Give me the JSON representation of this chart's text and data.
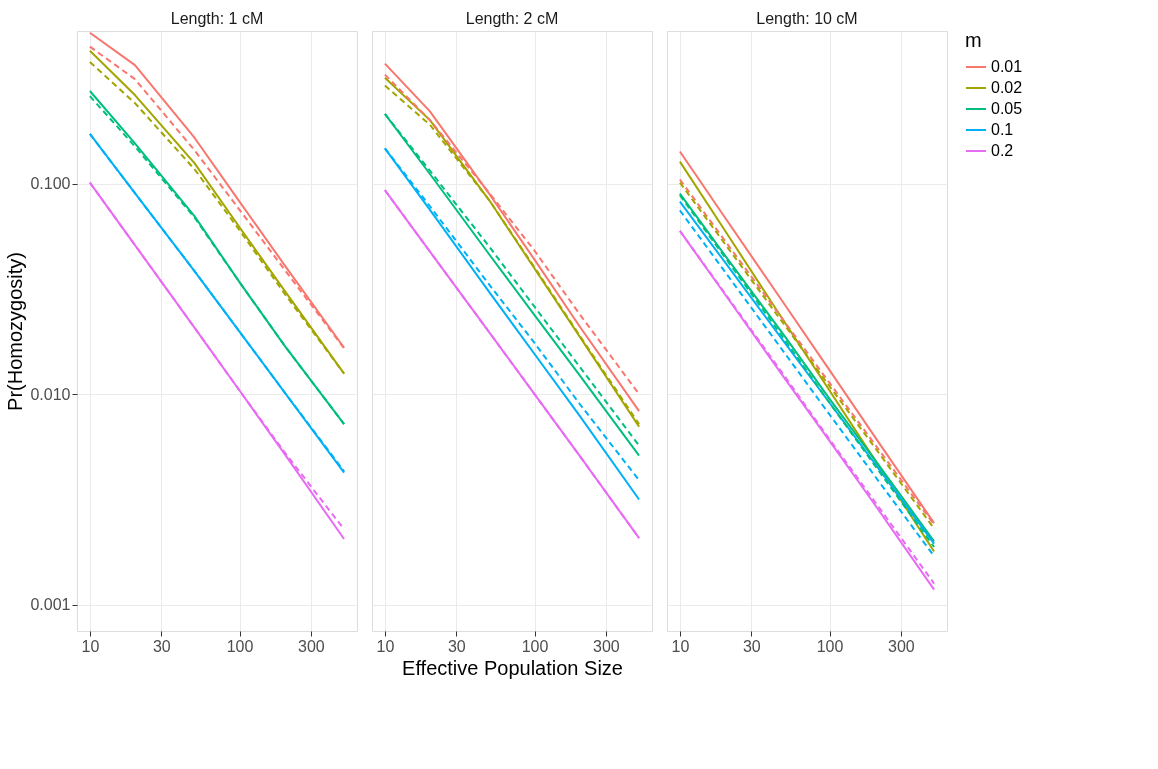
{
  "chart_data": [
    {
      "type": "line",
      "title": "Length: 1 cM",
      "ylabel": "Pr(Homozygosity)",
      "x": [
        10,
        20,
        50,
        100,
        200,
        500
      ],
      "xlim": [
        8.2,
        610
      ],
      "ylim": [
        0.00075,
        0.53
      ],
      "log": "xy",
      "grid": true,
      "legend": false,
      "xticks": [
        10,
        30,
        100,
        300
      ],
      "yticks": [
        {
          "value": 0.001,
          "label": "0.001"
        },
        {
          "value": 0.01,
          "label": "0.010"
        },
        {
          "value": 0.1,
          "label": "0.100"
        }
      ],
      "series": [
        {
          "color": "#F8766D",
          "line_style": "solid",
          "values": [
            0.52,
            0.365,
            0.165,
            0.082,
            0.041,
            0.0166
          ]
        },
        {
          "color": "#A3A500",
          "line_style": "solid",
          "values": [
            0.427,
            0.263,
            0.125,
            0.062,
            0.031,
            0.0125
          ]
        },
        {
          "color": "#00BF7D",
          "line_style": "solid",
          "values": [
            0.275,
            0.155,
            0.07,
            0.034,
            0.017,
            0.0072
          ]
        },
        {
          "color": "#00B0F6",
          "line_style": "solid",
          "values": [
            0.172,
            0.09,
            0.0384,
            0.0198,
            0.0102,
            0.00424
          ]
        },
        {
          "color": "#E76BF3",
          "line_style": "solid",
          "values": [
            0.101,
            0.051,
            0.0207,
            0.0104,
            0.0052,
            0.00205
          ]
        },
        {
          "color": "#F8766D",
          "line_style": "dashed",
          "values": [
            0.447,
            0.313,
            0.144,
            0.075,
            0.039,
            0.0165
          ]
        },
        {
          "color": "#A3A500",
          "line_style": "dashed",
          "values": [
            0.378,
            0.241,
            0.117,
            0.06,
            0.03,
            0.0125
          ]
        },
        {
          "color": "#00BF7D",
          "line_style": "dashed",
          "values": [
            0.26,
            0.15,
            0.069,
            0.034,
            0.017,
            0.0072
          ]
        },
        {
          "color": "#00B0F6",
          "line_style": "dashed",
          "values": [
            0.172,
            0.09,
            0.0384,
            0.0198,
            0.0102,
            0.0043
          ]
        },
        {
          "color": "#E76BF3",
          "line_style": "dashed",
          "values": [
            0.101,
            0.051,
            0.0207,
            0.0104,
            0.0053,
            0.00228
          ]
        }
      ]
    },
    {
      "type": "line",
      "title": "Length: 2 cM",
      "xlabel": "Effective Population Size",
      "x": [
        10,
        20,
        50,
        100,
        200,
        500
      ],
      "xlim": [
        8.2,
        610
      ],
      "ylim": [
        0.00075,
        0.53
      ],
      "log": "xy",
      "grid": true,
      "legend": false,
      "tick_labels": "x",
      "xticks": [
        10,
        30,
        100,
        300
      ],
      "yticks": [
        0.001,
        0.01,
        0.1
      ],
      "series": [
        {
          "color": "#F8766D",
          "line_style": "solid",
          "values": [
            0.371,
            0.22,
            0.089,
            0.0435,
            0.021,
            0.0083
          ]
        },
        {
          "color": "#A3A500",
          "line_style": "solid",
          "values": [
            0.318,
            0.2,
            0.083,
            0.0395,
            0.0188,
            0.007
          ]
        },
        {
          "color": "#00BF7D",
          "line_style": "solid",
          "values": [
            0.214,
            0.111,
            0.0459,
            0.0237,
            0.0123,
            0.0051
          ]
        },
        {
          "color": "#00B0F6",
          "line_style": "solid",
          "values": [
            0.147,
            0.075,
            0.0304,
            0.0155,
            0.0079,
            0.00316
          ]
        },
        {
          "color": "#E76BF3",
          "line_style": "solid",
          "values": [
            0.093,
            0.0475,
            0.0196,
            0.01,
            0.0051,
            0.00207
          ]
        },
        {
          "color": "#F8766D",
          "line_style": "dashed",
          "values": [
            0.329,
            0.2,
            0.09,
            0.048,
            0.024,
            0.01
          ]
        },
        {
          "color": "#A3A500",
          "line_style": "dashed",
          "values": [
            0.292,
            0.19,
            0.083,
            0.04,
            0.019,
            0.0072
          ]
        },
        {
          "color": "#00BF7D",
          "line_style": "dashed",
          "values": [
            0.214,
            0.115,
            0.05,
            0.026,
            0.0135,
            0.0057
          ]
        },
        {
          "color": "#00B0F6",
          "line_style": "dashed",
          "values": [
            0.147,
            0.078,
            0.033,
            0.0175,
            0.009,
            0.0039
          ]
        },
        {
          "color": "#E76BF3",
          "line_style": "dashed",
          "values": [
            0.093,
            0.0475,
            0.0196,
            0.01,
            0.0051,
            0.00207
          ]
        }
      ]
    },
    {
      "type": "line",
      "title": "Length: 10 cM",
      "legend_title": "m",
      "x": [
        10,
        20,
        50,
        100,
        200,
        500
      ],
      "xlim": [
        8.2,
        610
      ],
      "ylim": [
        0.00075,
        0.53
      ],
      "log": "xy",
      "grid": true,
      "legend": "right",
      "tick_labels": "x",
      "xticks": [
        10,
        30,
        100,
        300
      ],
      "yticks": [
        0.001,
        0.01,
        0.1
      ],
      "series": [
        {
          "name": "0.01",
          "color": "#F8766D",
          "line_style": "solid",
          "values": [
            0.142,
            0.069,
            0.0267,
            0.013,
            0.0063,
            0.00244
          ]
        },
        {
          "name": "0.02",
          "color": "#A3A500",
          "line_style": "solid",
          "values": [
            0.127,
            0.0598,
            0.022,
            0.0104,
            0.0049,
            0.00179
          ]
        },
        {
          "name": "0.05",
          "color": "#00BF7D",
          "line_style": "solid",
          "values": [
            0.0895,
            0.0456,
            0.0189,
            0.0095,
            0.0049,
            0.002
          ]
        },
        {
          "name": "0.1",
          "color": "#00B0F6",
          "line_style": "solid",
          "values": [
            0.082,
            0.0423,
            0.0176,
            0.0091,
            0.0047,
            0.00195
          ]
        },
        {
          "name": "0.2",
          "color": "#E76BF3",
          "line_style": "solid",
          "values": [
            0.0596,
            0.0298,
            0.0119,
            0.006,
            0.003,
            0.00118
          ]
        },
        {
          "color": "#F8766D",
          "line_style": "dashed",
          "values": [
            0.1045,
            0.0535,
            0.0221,
            0.0113,
            0.0058,
            0.0024
          ]
        },
        {
          "color": "#A3A500",
          "line_style": "dashed",
          "values": [
            0.101,
            0.0517,
            0.0213,
            0.0109,
            0.0056,
            0.0023
          ]
        },
        {
          "color": "#00BF7D",
          "line_style": "dashed",
          "values": [
            0.088,
            0.0446,
            0.0182,
            0.0091,
            0.0046,
            0.00188
          ]
        },
        {
          "color": "#00B0F6",
          "line_style": "dashed",
          "values": [
            0.0745,
            0.0381,
            0.0157,
            0.008,
            0.0041,
            0.0017
          ]
        },
        {
          "color": "#E76BF3",
          "line_style": "dashed",
          "values": [
            0.0596,
            0.0301,
            0.0122,
            0.0061,
            0.0031,
            0.00126
          ]
        }
      ]
    }
  ]
}
